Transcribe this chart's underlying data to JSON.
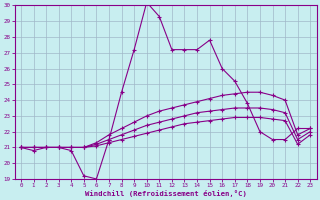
{
  "xlabel": "Windchill (Refroidissement éolien,°C)",
  "background_color": "#c8eef0",
  "grid_color": "#a0b8c8",
  "line_color": "#880088",
  "hours": [
    0,
    1,
    2,
    3,
    4,
    5,
    6,
    7,
    8,
    9,
    10,
    11,
    12,
    13,
    14,
    15,
    16,
    17,
    18,
    19,
    20,
    21,
    22,
    23
  ],
  "line_main": [
    21.0,
    20.8,
    21.0,
    21.0,
    20.8,
    19.2,
    19.0,
    21.5,
    24.5,
    27.2,
    30.2,
    29.3,
    27.2,
    27.2,
    27.2,
    27.8,
    26.0,
    25.2,
    23.8,
    22.0,
    21.5,
    21.5,
    22.2,
    22.2
  ],
  "line_a": [
    21.0,
    21.0,
    21.0,
    21.0,
    21.0,
    21.0,
    21.3,
    21.8,
    22.2,
    22.6,
    23.0,
    23.3,
    23.5,
    23.7,
    23.9,
    24.1,
    24.3,
    24.4,
    24.5,
    24.5,
    24.3,
    24.0,
    21.8,
    22.2
  ],
  "line_b": [
    21.0,
    21.0,
    21.0,
    21.0,
    21.0,
    21.0,
    21.2,
    21.5,
    21.8,
    22.1,
    22.4,
    22.6,
    22.8,
    23.0,
    23.2,
    23.3,
    23.4,
    23.5,
    23.5,
    23.5,
    23.4,
    23.2,
    21.5,
    22.0
  ],
  "line_c": [
    21.0,
    21.0,
    21.0,
    21.0,
    21.0,
    21.0,
    21.1,
    21.3,
    21.5,
    21.7,
    21.9,
    22.1,
    22.3,
    22.5,
    22.6,
    22.7,
    22.8,
    22.9,
    22.9,
    22.9,
    22.8,
    22.7,
    21.2,
    21.8
  ],
  "ylim": [
    19,
    30
  ],
  "yticks": [
    19,
    20,
    21,
    22,
    23,
    24,
    25,
    26,
    27,
    28,
    29,
    30
  ],
  "xticks": [
    0,
    1,
    2,
    3,
    4,
    5,
    6,
    7,
    8,
    9,
    10,
    11,
    12,
    13,
    14,
    15,
    16,
    17,
    18,
    19,
    20,
    21,
    22,
    23
  ]
}
